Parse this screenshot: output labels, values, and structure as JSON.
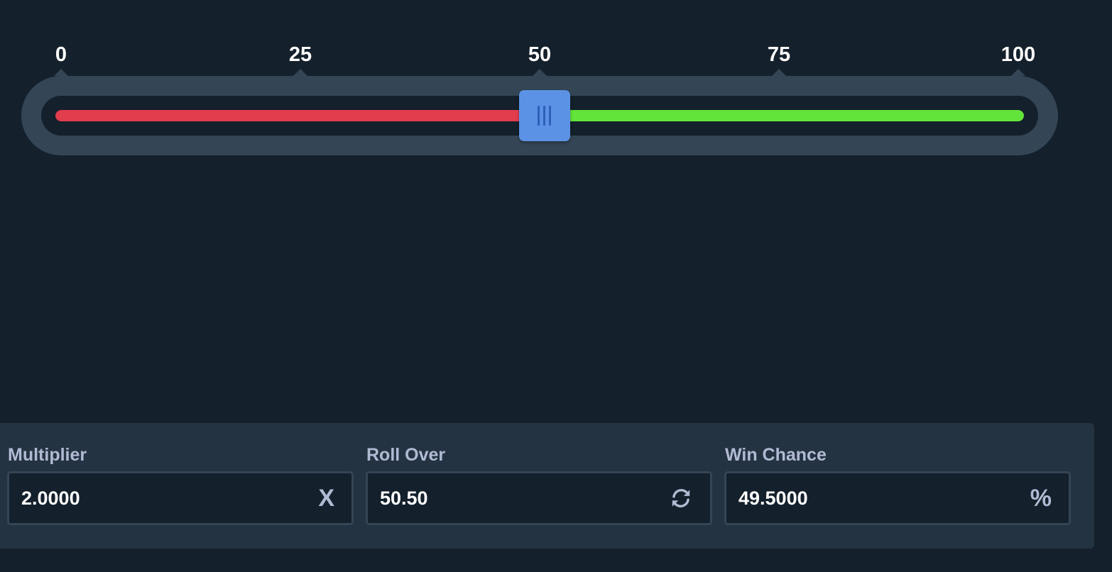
{
  "slider": {
    "min": 0,
    "max": 100,
    "value": 50.5,
    "ticks": [
      "0",
      "25",
      "50",
      "75",
      "100"
    ],
    "colors": {
      "lose": "#e23d4d",
      "win": "#63e43b",
      "handle": "#5b92e5"
    }
  },
  "fields": {
    "multiplier": {
      "label": "Multiplier",
      "value": "2.0000",
      "suffix": "X"
    },
    "roll_over": {
      "label": "Roll Over",
      "value": "50.50",
      "icon": "refresh-icon"
    },
    "win_chance": {
      "label": "Win Chance",
      "value": "49.5000",
      "suffix": "%"
    }
  }
}
